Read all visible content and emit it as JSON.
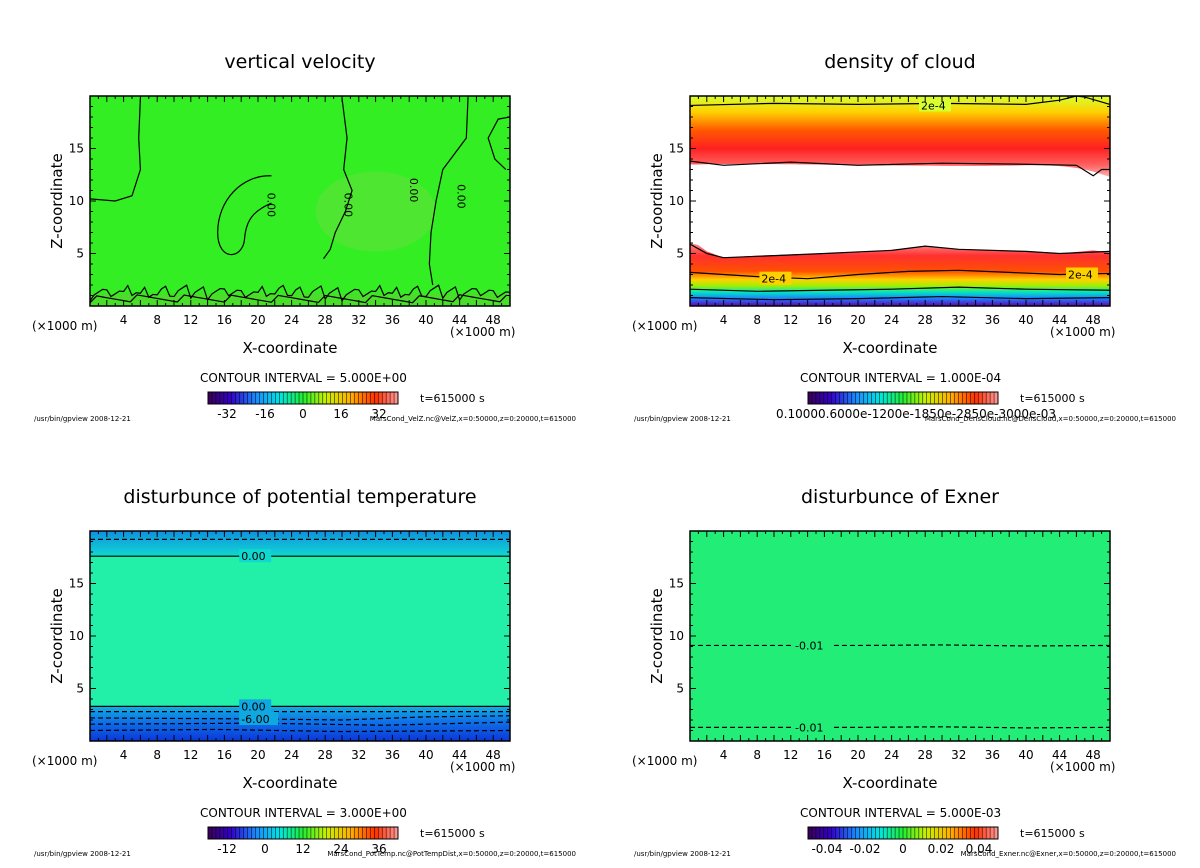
{
  "chart_data": [
    {
      "type": "heatmap",
      "title": "vertical velocity",
      "xlabel": "X-coordinate",
      "ylabel": "Z-coordinate",
      "x_unit": "(×1000 m)",
      "x_ticks": [
        "4",
        "8",
        "12",
        "16",
        "20",
        "24",
        "28",
        "32",
        "36",
        "40",
        "44",
        "48"
      ],
      "y_ticks": [
        "5",
        "10",
        "15"
      ],
      "xlim": [
        0,
        50
      ],
      "ylim": [
        0,
        20
      ],
      "contour_interval": "CONTOUR INTERVAL = 5.000E+00",
      "time": "t=615000 s",
      "colorbar_ticks": [
        "-32",
        "-16",
        "0",
        "16",
        "32"
      ],
      "colorbar_values": [
        -32,
        -16,
        0,
        16,
        32
      ],
      "colorbar_range": [
        -40,
        40
      ],
      "contour_labels": [
        "0.00",
        "0.00",
        "0.00",
        "0.00"
      ],
      "footer_left": "/usr/bin/gpview  2008-12-21",
      "footer_right": "MarsCond_VelZ.nc@VelZ,x=0:50000,z=0:20000,t=615000",
      "fill_color": "#33ee22"
    },
    {
      "type": "heatmap",
      "title": "density of cloud",
      "xlabel": "X-coordinate",
      "ylabel": "Z-coordinate",
      "x_unit": "(×1000 m)",
      "x_ticks": [
        "4",
        "8",
        "12",
        "16",
        "20",
        "24",
        "28",
        "32",
        "36",
        "40",
        "44",
        "48"
      ],
      "y_ticks": [
        "5",
        "10",
        "15"
      ],
      "xlim": [
        0,
        50
      ],
      "ylim": [
        0,
        20
      ],
      "contour_interval": "CONTOUR INTERVAL = 1.000E-04",
      "time": "t=615000 s",
      "colorbar_ticks": [
        "0.10000.6000e-1200e-1850e-2850e-3000e-03"
      ],
      "contour_labels": [
        "2e-4",
        "2e-4",
        "2e-4"
      ],
      "footer_left": "/usr/bin/gpview  2008-12-21",
      "footer_right": "MarsCond_DensCloud.nc@DensCloud,x=0:50000,z=0:20000,t=615000"
    },
    {
      "type": "heatmap",
      "title": "disturbunce of potential temperature",
      "xlabel": "X-coordinate",
      "ylabel": "Z-coordinate",
      "x_unit": "(×1000 m)",
      "x_ticks": [
        "4",
        "8",
        "12",
        "16",
        "20",
        "24",
        "28",
        "32",
        "36",
        "40",
        "44",
        "48"
      ],
      "y_ticks": [
        "5",
        "10",
        "15"
      ],
      "xlim": [
        0,
        50
      ],
      "ylim": [
        0,
        20
      ],
      "contour_interval": "CONTOUR INTERVAL = 3.000E+00",
      "time": "t=615000 s",
      "colorbar_ticks": [
        "-12",
        "0",
        "12",
        "24",
        "36"
      ],
      "colorbar_values": [
        -12,
        0,
        12,
        24,
        36
      ],
      "colorbar_range": [
        -18,
        42
      ],
      "contour_labels": [
        "0.00",
        "0.00",
        "-6.00"
      ],
      "footer_left": "/usr/bin/gpview  2008-12-21",
      "footer_right": "MarsCond_PotTemp.nc@PotTempDist,x=0:50000,z=0:20000,t=615000",
      "fill_color": "#22f0a8"
    },
    {
      "type": "heatmap",
      "title": "disturbunce of Exner",
      "xlabel": "X-coordinate",
      "ylabel": "Z-coordinate",
      "x_unit": "(×1000 m)",
      "x_ticks": [
        "4",
        "8",
        "12",
        "16",
        "20",
        "24",
        "28",
        "32",
        "36",
        "40",
        "44",
        "48"
      ],
      "y_ticks": [
        "5",
        "10",
        "15"
      ],
      "xlim": [
        0,
        50
      ],
      "ylim": [
        0,
        20
      ],
      "contour_interval": "CONTOUR INTERVAL = 5.000E-03",
      "time": "t=615000 s",
      "colorbar_ticks": [
        "-0.04",
        "-0.02",
        "0",
        "0.02",
        "0.04"
      ],
      "colorbar_values": [
        -0.04,
        -0.02,
        0,
        0.02,
        0.04
      ],
      "colorbar_range": [
        -0.05,
        0.05
      ],
      "contour_labels": [
        "-0.01",
        "-0.01"
      ],
      "footer_left": "/usr/bin/gpview  2008-12-21",
      "footer_right": "MarsCond_Exner.nc@Exner,x=0:50000,z=0:20000,t=615000",
      "fill_color": "#22ee77"
    }
  ]
}
